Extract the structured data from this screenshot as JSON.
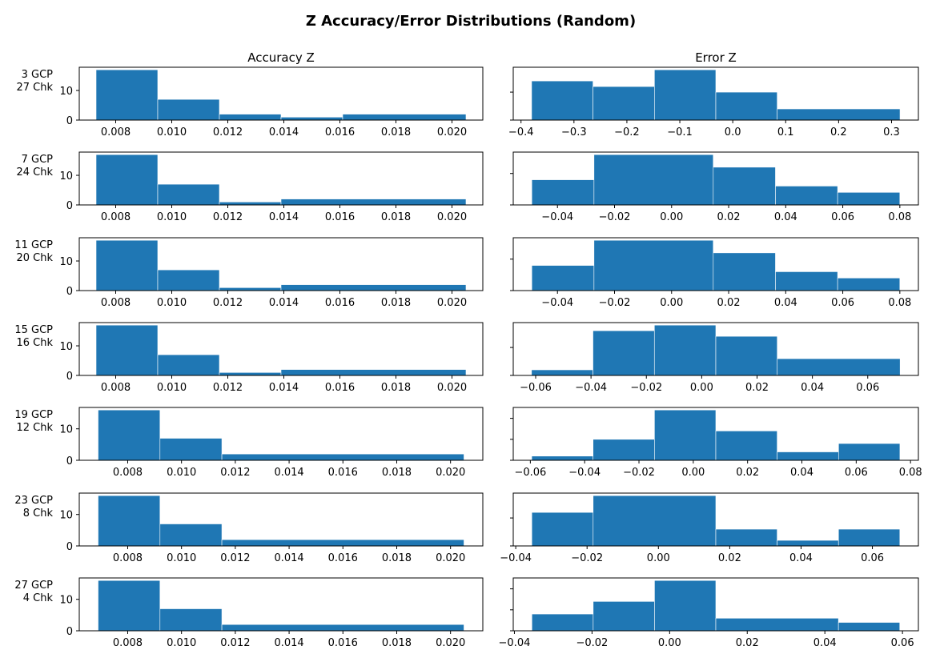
{
  "figure_title": "Z Accuracy/Error Distributions (Random)",
  "column_titles": {
    "accuracy": "Accuracy Z",
    "error": "Error Z"
  },
  "colors": {
    "bar": "#1f77b4",
    "bar_edge": "#ffffff",
    "axis": "#000000"
  },
  "chart_data": [
    {
      "type": "bar",
      "panel": "accuracy",
      "row_label": [
        "3 GCP",
        "27 Chk"
      ],
      "bins": [
        [
          0.0073,
          0.0095
        ],
        [
          0.0095,
          0.0117
        ],
        [
          0.0117,
          0.0139
        ],
        [
          0.0139,
          0.0161
        ],
        [
          0.0161,
          0.0205
        ]
      ],
      "values": [
        17,
        7,
        2,
        1,
        2
      ],
      "xlim": [
        0.0067,
        0.0211
      ],
      "ylim": [
        0,
        17.85
      ],
      "xticks": [
        0.008,
        0.01,
        0.012,
        0.014,
        0.016,
        0.018,
        0.02
      ],
      "xtick_labels": [
        "0.008",
        "0.010",
        "0.012",
        "0.014",
        "0.016",
        "0.018",
        "0.020"
      ],
      "yticks": [
        0,
        10
      ],
      "ytick_labels": [
        "0",
        "10"
      ]
    },
    {
      "type": "bar",
      "panel": "error",
      "row_label": [
        "3 GCP",
        "27 Chk"
      ],
      "bins": [
        [
          -0.38,
          -0.264
        ],
        [
          -0.264,
          -0.148
        ],
        [
          -0.148,
          -0.032
        ],
        [
          -0.032,
          0.084
        ],
        [
          0.084,
          0.316
        ]
      ],
      "values": [
        7,
        6,
        9,
        5,
        2
      ],
      "xlim": [
        -0.4147,
        0.3507
      ],
      "ylim": [
        0,
        9.45
      ],
      "xticks": [
        -0.4,
        -0.3,
        -0.2,
        -0.1,
        0.0,
        0.1,
        0.2,
        0.3
      ],
      "xtick_labels": [
        "−0.4",
        "−0.3",
        "−0.2",
        "−0.1",
        "0.0",
        "0.1",
        "0.2",
        "0.3"
      ],
      "yticks": [
        0,
        5
      ],
      "ytick_labels": [
        "",
        ""
      ]
    },
    {
      "type": "bar",
      "panel": "accuracy",
      "row_label": [
        "7 GCP",
        "24 Chk"
      ],
      "bins": [
        [
          0.0073,
          0.0095
        ],
        [
          0.0095,
          0.0117
        ],
        [
          0.0117,
          0.0139
        ],
        [
          0.0139,
          0.0205
        ]
      ],
      "values": [
        17,
        7,
        1,
        2
      ],
      "xlim": [
        0.0067,
        0.0211
      ],
      "ylim": [
        0,
        17.85
      ],
      "xticks": [
        0.008,
        0.01,
        0.012,
        0.014,
        0.016,
        0.018,
        0.02
      ],
      "xtick_labels": [
        "0.008",
        "0.010",
        "0.012",
        "0.014",
        "0.016",
        "0.018",
        "0.020"
      ],
      "yticks": [
        0,
        10
      ],
      "ytick_labels": [
        "0",
        "10"
      ]
    },
    {
      "type": "bar",
      "panel": "error",
      "row_label": [
        "7 GCP",
        "24 Chk"
      ],
      "bins": [
        [
          -0.049,
          -0.0272
        ],
        [
          -0.0272,
          0.0146
        ],
        [
          0.0146,
          0.0364
        ],
        [
          0.0364,
          0.0582
        ],
        [
          0.0582,
          0.08
        ]
      ],
      "values": [
        4,
        8,
        6,
        3,
        2
      ],
      "xlim": [
        -0.0555,
        0.0865
      ],
      "ylim": [
        0,
        8.4
      ],
      "xticks": [
        -0.04,
        -0.02,
        0.0,
        0.02,
        0.04,
        0.06,
        0.08
      ],
      "xtick_labels": [
        "−0.04",
        "−0.02",
        "0.00",
        "0.02",
        "0.04",
        "0.06",
        "0.08"
      ],
      "yticks": [
        0,
        5
      ],
      "ytick_labels": [
        "",
        ""
      ]
    },
    {
      "type": "bar",
      "panel": "accuracy",
      "row_label": [
        "11 GCP",
        "20 Chk"
      ],
      "bins": [
        [
          0.0073,
          0.0095
        ],
        [
          0.0095,
          0.0117
        ],
        [
          0.0117,
          0.0139
        ],
        [
          0.0139,
          0.0205
        ]
      ],
      "values": [
        17,
        7,
        1,
        2
      ],
      "xlim": [
        0.0067,
        0.0211
      ],
      "ylim": [
        0,
        17.85
      ],
      "xticks": [
        0.008,
        0.01,
        0.012,
        0.014,
        0.016,
        0.018,
        0.02
      ],
      "xtick_labels": [
        "0.008",
        "0.010",
        "0.012",
        "0.014",
        "0.016",
        "0.018",
        "0.020"
      ],
      "yticks": [
        0,
        10
      ],
      "ytick_labels": [
        "0",
        "10"
      ]
    },
    {
      "type": "bar",
      "panel": "error",
      "row_label": [
        "11 GCP",
        "20 Chk"
      ],
      "bins": [
        [
          -0.049,
          -0.0272
        ],
        [
          -0.0272,
          0.0146
        ],
        [
          0.0146,
          0.0364
        ],
        [
          0.0364,
          0.0582
        ],
        [
          0.0582,
          0.08
        ]
      ],
      "values": [
        4,
        8,
        6,
        3,
        2
      ],
      "xlim": [
        -0.0555,
        0.0865
      ],
      "ylim": [
        0,
        8.4
      ],
      "xticks": [
        -0.04,
        -0.02,
        0.0,
        0.02,
        0.04,
        0.06,
        0.08
      ],
      "xtick_labels": [
        "−0.04",
        "−0.02",
        "0.00",
        "0.02",
        "0.04",
        "0.06",
        "0.08"
      ],
      "yticks": [
        0,
        5
      ],
      "ytick_labels": [
        "",
        ""
      ]
    },
    {
      "type": "bar",
      "panel": "accuracy",
      "row_label": [
        "15 GCP",
        "16 Chk"
      ],
      "bins": [
        [
          0.0073,
          0.0095
        ],
        [
          0.0095,
          0.0117
        ],
        [
          0.0117,
          0.0139
        ],
        [
          0.0139,
          0.0205
        ]
      ],
      "values": [
        17,
        7,
        1,
        2
      ],
      "xlim": [
        0.0067,
        0.0211
      ],
      "ylim": [
        0,
        17.85
      ],
      "xticks": [
        0.008,
        0.01,
        0.012,
        0.014,
        0.016,
        0.018,
        0.02
      ],
      "xtick_labels": [
        "0.008",
        "0.010",
        "0.012",
        "0.014",
        "0.016",
        "0.018",
        "0.020"
      ],
      "yticks": [
        0,
        10
      ],
      "ytick_labels": [
        "0",
        "10"
      ]
    },
    {
      "type": "bar",
      "panel": "error",
      "row_label": [
        "15 GCP",
        "16 Chk"
      ],
      "bins": [
        [
          -0.0615,
          -0.0393
        ],
        [
          -0.0393,
          -0.0171
        ],
        [
          -0.0171,
          0.0051
        ],
        [
          0.0051,
          0.0273
        ],
        [
          0.0273,
          0.0717
        ]
      ],
      "values": [
        1,
        8,
        9,
        7,
        3
      ],
      "xlim": [
        -0.0681,
        0.0783
      ],
      "ylim": [
        0,
        9.45
      ],
      "xticks": [
        -0.06,
        -0.04,
        -0.02,
        0.0,
        0.02,
        0.04,
        0.06
      ],
      "xtick_labels": [
        "−0.06",
        "−0.04",
        "−0.02",
        "0.00",
        "0.02",
        "0.04",
        "0.06"
      ],
      "yticks": [
        0,
        5
      ],
      "ytick_labels": [
        "",
        ""
      ]
    },
    {
      "type": "bar",
      "panel": "accuracy",
      "row_label": [
        "19 GCP",
        "12 Chk"
      ],
      "bins": [
        [
          0.0069,
          0.0092
        ],
        [
          0.0092,
          0.0115
        ],
        [
          0.0115,
          0.0205
        ]
      ],
      "values": [
        16,
        7,
        2
      ],
      "xlim": [
        0.0062,
        0.0212
      ],
      "ylim": [
        0,
        16.8
      ],
      "xticks": [
        0.008,
        0.01,
        0.012,
        0.014,
        0.016,
        0.018,
        0.02
      ],
      "xtick_labels": [
        "0.008",
        "0.010",
        "0.012",
        "0.014",
        "0.016",
        "0.018",
        "0.020"
      ],
      "yticks": [
        0,
        10
      ],
      "ytick_labels": [
        "0",
        "10"
      ]
    },
    {
      "type": "bar",
      "panel": "error",
      "row_label": [
        "19 GCP",
        "12 Chk"
      ],
      "bins": [
        [
          -0.0595,
          -0.0369
        ],
        [
          -0.0369,
          -0.0143
        ],
        [
          -0.0143,
          0.0083
        ],
        [
          0.0083,
          0.0309
        ],
        [
          0.0309,
          0.0535
        ],
        [
          0.0535,
          0.0761
        ]
      ],
      "values": [
        1,
        5,
        12,
        7,
        2,
        4
      ],
      "xlim": [
        -0.0663,
        0.0829
      ],
      "ylim": [
        0,
        12.6
      ],
      "xticks": [
        -0.06,
        -0.04,
        -0.02,
        0.0,
        0.02,
        0.04,
        0.06,
        0.08
      ],
      "xtick_labels": [
        "−0.06",
        "−0.04",
        "−0.02",
        "0.00",
        "0.02",
        "0.04",
        "0.06",
        "0.08"
      ],
      "yticks": [
        0,
        5,
        10
      ],
      "ytick_labels": [
        "",
        "",
        ""
      ]
    },
    {
      "type": "bar",
      "panel": "accuracy",
      "row_label": [
        "23 GCP",
        "8 Chk"
      ],
      "bins": [
        [
          0.0069,
          0.0092
        ],
        [
          0.0092,
          0.0115
        ],
        [
          0.0115,
          0.0205
        ]
      ],
      "values": [
        16,
        7,
        2
      ],
      "xlim": [
        0.0062,
        0.0212
      ],
      "ylim": [
        0,
        16.8
      ],
      "xticks": [
        0.008,
        0.01,
        0.012,
        0.014,
        0.016,
        0.018,
        0.02
      ],
      "xtick_labels": [
        "0.008",
        "0.010",
        "0.012",
        "0.014",
        "0.016",
        "0.018",
        "0.020"
      ],
      "yticks": [
        0,
        10
      ],
      "ytick_labels": [
        "0",
        "10"
      ]
    },
    {
      "type": "bar",
      "panel": "error",
      "row_label": [
        "23 GCP",
        "8 Chk"
      ],
      "bins": [
        [
          -0.0355,
          -0.0183
        ],
        [
          -0.0183,
          0.0161
        ],
        [
          0.0161,
          0.0333
        ],
        [
          0.0333,
          0.0505
        ],
        [
          0.0505,
          0.0677
        ]
      ],
      "values": [
        6,
        9,
        3,
        1,
        3
      ],
      "xlim": [
        -0.0407,
        0.0729
      ],
      "ylim": [
        0,
        9.45
      ],
      "xticks": [
        -0.04,
        -0.02,
        0.0,
        0.02,
        0.04,
        0.06
      ],
      "xtick_labels": [
        "−0.04",
        "−0.02",
        "0.00",
        "0.02",
        "0.04",
        "0.06"
      ],
      "yticks": [
        0,
        5
      ],
      "ytick_labels": [
        "",
        ""
      ]
    },
    {
      "type": "bar",
      "panel": "accuracy",
      "row_label": [
        "27 GCP",
        "4 Chk"
      ],
      "bins": [
        [
          0.0069,
          0.0092
        ],
        [
          0.0092,
          0.0115
        ],
        [
          0.0115,
          0.0205
        ]
      ],
      "values": [
        16,
        7,
        2
      ],
      "xlim": [
        0.0062,
        0.0212
      ],
      "ylim": [
        0,
        16.8
      ],
      "xticks": [
        0.008,
        0.01,
        0.012,
        0.014,
        0.016,
        0.018,
        0.02
      ],
      "xtick_labels": [
        "0.008",
        "0.010",
        "0.012",
        "0.014",
        "0.016",
        "0.018",
        "0.020"
      ],
      "yticks": [
        0,
        10
      ],
      "ytick_labels": [
        "0",
        "10"
      ]
    },
    {
      "type": "bar",
      "panel": "error",
      "row_label": [
        "27 GCP",
        "4 Chk"
      ],
      "bins": [
        [
          -0.0355,
          -0.0197
        ],
        [
          -0.0197,
          -0.0039
        ],
        [
          -0.0039,
          0.0119
        ],
        [
          0.0119,
          0.0435
        ],
        [
          0.0435,
          0.0593
        ]
      ],
      "values": [
        4,
        7,
        12,
        3,
        2
      ],
      "xlim": [
        -0.0403,
        0.0641
      ],
      "ylim": [
        0,
        12.6
      ],
      "xticks": [
        -0.04,
        -0.02,
        0.0,
        0.02,
        0.04,
        0.06
      ],
      "xtick_labels": [
        "−0.04",
        "−0.02",
        "0.00",
        "0.02",
        "0.04",
        "0.06"
      ],
      "yticks": [
        0,
        5,
        10
      ],
      "ytick_labels": [
        "",
        "",
        ""
      ]
    }
  ]
}
